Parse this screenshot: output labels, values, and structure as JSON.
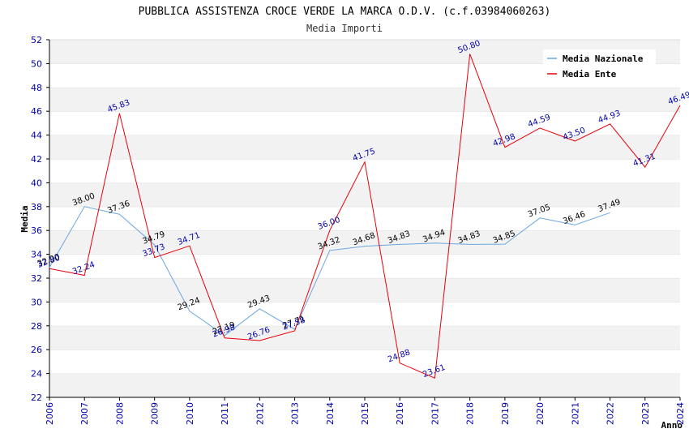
{
  "chart_data": {
    "type": "line",
    "title": "PUBBLICA ASSISTENZA CROCE VERDE LA MARCA O.D.V. (c.f.03984060263)",
    "subtitle": "Media Importi",
    "xlabel": "Anno",
    "ylabel": "Media",
    "ylim": [
      22,
      52
    ],
    "yticks": [
      22,
      24,
      26,
      28,
      30,
      32,
      34,
      36,
      38,
      40,
      42,
      44,
      46,
      48,
      50,
      52
    ],
    "categories": [
      "2006",
      "2007",
      "2008",
      "2009",
      "2010",
      "2011",
      "2012",
      "2013",
      "2014",
      "2015",
      "2016",
      "2017",
      "2018",
      "2019",
      "2020",
      "2021",
      "2022",
      "2023",
      "2024"
    ],
    "grid": "horizontal bands",
    "legend_position": "top-right",
    "series": [
      {
        "name": "Media Nazionale",
        "color": "#6aa6e0",
        "label_color": "#000000",
        "values": [
          32.9,
          38.0,
          37.36,
          34.79,
          29.24,
          27.19,
          29.43,
          27.71,
          34.32,
          34.68,
          34.83,
          34.94,
          34.83,
          34.85,
          37.05,
          36.46,
          37.49,
          null,
          null
        ],
        "labels": [
          "32.90",
          "38.00",
          "37.36",
          "34.79",
          "29.24",
          "27.19",
          "29.43",
          "27.71",
          "34.32",
          "34.68",
          "34.83",
          "34.94",
          "34.83",
          "34.85",
          "37.05",
          "36.46",
          "37.49",
          "",
          ""
        ]
      },
      {
        "name": "Media Ente",
        "color": "#e8000b",
        "label_color": "#0000aa",
        "values": [
          32.8,
          32.24,
          45.83,
          33.73,
          34.71,
          26.98,
          26.76,
          27.58,
          36.0,
          41.75,
          24.88,
          23.61,
          50.8,
          42.98,
          44.59,
          43.5,
          44.93,
          41.31,
          46.49
        ],
        "labels": [
          "32.80",
          "32.24",
          "45.83",
          "33.73",
          "34.71",
          "26.98",
          "26.76",
          "27.58",
          "36.00",
          "41.75",
          "24.88",
          "23.61",
          "50.80",
          "42.98",
          "44.59",
          "43.50",
          "44.93",
          "41.31",
          "46.49"
        ]
      }
    ]
  }
}
